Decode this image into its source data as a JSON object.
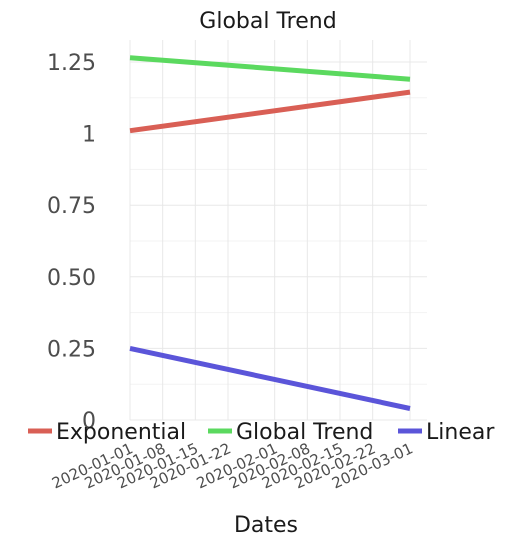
{
  "chart_data": {
    "type": "line",
    "title": "Global Trend",
    "xlabel": "Dates",
    "ylabel": "",
    "x_ticks": [
      "2020-01-01",
      "2020-01-08",
      "2020-01-15",
      "2020-01-22",
      "2020-02-01",
      "2020-02-08",
      "2020-02-15",
      "2020-02-22",
      "2020-03-01"
    ],
    "y_ticks": [
      {
        "value": 0,
        "label": "0"
      },
      {
        "value": 0.25,
        "label": "0.25"
      },
      {
        "value": 0.5,
        "label": "0.50"
      },
      {
        "value": 0.75,
        "label": "0.75"
      },
      {
        "value": 1,
        "label": "1"
      },
      {
        "value": 1.25,
        "label": "1.25"
      }
    ],
    "xlim": [
      "2020-01-01",
      "2020-03-01"
    ],
    "ylim": [
      0,
      1.25
    ],
    "grid": true,
    "legend_position": "bottom",
    "series": [
      {
        "name": "Exponential",
        "color": "#d95f55",
        "x": [
          "2020-01-01",
          "2020-03-01"
        ],
        "values": [
          1.01,
          1.145
        ]
      },
      {
        "name": "Global Trend",
        "color": "#5bd95f",
        "x": [
          "2020-01-01",
          "2020-03-01"
        ],
        "values": [
          1.265,
          1.19
        ]
      },
      {
        "name": "Linear",
        "color": "#5b55d9",
        "x": [
          "2020-01-01",
          "2020-03-01"
        ],
        "values": [
          0.25,
          0.04
        ]
      }
    ]
  }
}
